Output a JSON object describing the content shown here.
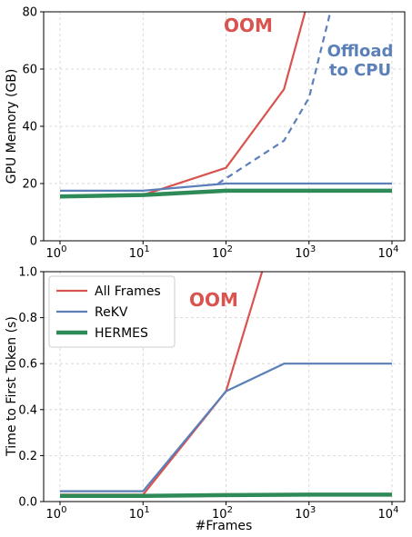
{
  "chart_data": [
    {
      "type": "line",
      "xscale": "log",
      "x_ticks": [
        "10^0",
        "10^1",
        "10^2",
        "10^3",
        "10^4"
      ],
      "ylabel": "GPU Memory (GB)",
      "ylim": [
        0,
        80
      ],
      "y_ticks": [
        "0",
        "20",
        "40",
        "60",
        "80"
      ],
      "grid": true,
      "series": [
        {
          "key": "allframes",
          "color": "#d9534f",
          "width": 2.2,
          "dash": "",
          "x": [
            1,
            10,
            100,
            500,
            1000
          ],
          "y": [
            15.5,
            16,
            25.5,
            53,
            85
          ]
        },
        {
          "key": "offload",
          "color": "#5b7fb8",
          "width": 2.2,
          "dash": "7 5",
          "x": [
            80,
            500,
            1000,
            2000
          ],
          "y": [
            20,
            35,
            50,
            85
          ]
        },
        {
          "key": "rekv",
          "color": "#5b7fb8",
          "width": 2.2,
          "dash": "",
          "x": [
            1,
            10,
            100,
            500,
            1000,
            10000
          ],
          "y": [
            17.5,
            17.5,
            20,
            20,
            20,
            20
          ]
        },
        {
          "key": "hermes",
          "color": "#2e8b57",
          "width": 4.5,
          "dash": "",
          "x": [
            1,
            10,
            100,
            500,
            1000,
            10000
          ],
          "y": [
            15.5,
            16,
            17.5,
            17.5,
            17.5,
            17.5
          ]
        }
      ],
      "annotations": [
        {
          "text": "OOM",
          "color": "#d9534f"
        },
        {
          "line1": "Offload",
          "line2": "to CPU",
          "color": "#5b7fb8"
        }
      ]
    },
    {
      "type": "line",
      "xscale": "log",
      "x_ticks": [
        "10^0",
        "10^1",
        "10^2",
        "10^3",
        "10^4"
      ],
      "xlabel": "#Frames",
      "ylabel": "Time to First Token (s)",
      "ylim": [
        0,
        1.0
      ],
      "y_ticks": [
        "0.0",
        "0.2",
        "0.4",
        "0.6",
        "0.8",
        "1.0"
      ],
      "grid": true,
      "legend_position": "top-left",
      "series": [
        {
          "key": "allframes",
          "name": "All Frames",
          "color": "#d9534f",
          "width": 2.2,
          "x": [
            1,
            10,
            100,
            300
          ],
          "y": [
            0.03,
            0.03,
            0.48,
            1.05
          ]
        },
        {
          "key": "rekv",
          "name": "ReKV",
          "color": "#5b7fb8",
          "width": 2.2,
          "x": [
            1,
            10,
            100,
            500,
            1000,
            10000
          ],
          "y": [
            0.045,
            0.045,
            0.48,
            0.6,
            0.6,
            0.6
          ]
        },
        {
          "key": "hermes",
          "name": "HERMES",
          "color": "#2e8b57",
          "width": 4.5,
          "x": [
            1,
            10,
            100,
            1000,
            10000
          ],
          "y": [
            0.025,
            0.025,
            0.028,
            0.03,
            0.03
          ]
        }
      ],
      "annotations": [
        {
          "text": "OOM",
          "color": "#d9534f"
        }
      ]
    }
  ]
}
